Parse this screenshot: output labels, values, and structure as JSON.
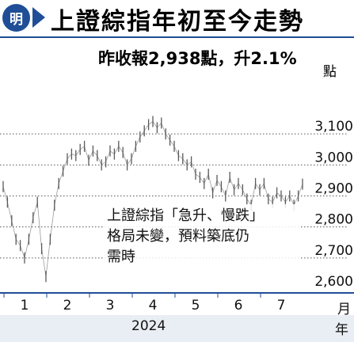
{
  "header": {
    "logo_text": "明",
    "title": "上證綜指年初至今走勢"
  },
  "chart_data": {
    "type": "line",
    "title": "上證綜指年初至今走勢",
    "annotation": "昨收報2,938點，升2.1%",
    "ylabel": "點",
    "xlabel": "月",
    "year_label": "2024",
    "year_unit": "年",
    "ylim": [
      2600,
      3200
    ],
    "yticks": [
      {
        "value": 3100,
        "label": "3,100"
      },
      {
        "value": 3000,
        "label": "3,000"
      },
      {
        "value": 2900,
        "label": "2,900"
      },
      {
        "value": 2800,
        "label": "2,800"
      },
      {
        "value": 2700,
        "label": "2,700"
      },
      {
        "value": 2600,
        "label": "2,600"
      }
    ],
    "xticks": [
      "1",
      "2",
      "3",
      "4",
      "5",
      "6",
      "7"
    ],
    "grid": true,
    "accent_color": "#1f4e97",
    "series_color": "#5a5a5a",
    "series": [
      {
        "x": [
          0.0,
          0.2,
          0.4,
          0.6,
          0.8,
          1.0,
          1.2,
          1.4,
          1.6,
          1.8,
          2.0,
          2.2,
          2.4,
          2.6,
          2.8,
          3.0,
          3.2,
          3.4,
          3.6,
          3.8,
          4.0,
          4.2,
          4.4,
          4.6,
          4.8,
          5.0,
          5.2,
          5.4,
          5.6,
          5.8,
          6.0,
          6.2,
          6.4,
          6.6,
          6.8,
          7.0,
          7.2,
          7.4,
          7.6,
          7.8,
          8.0,
          8.2,
          8.4,
          8.6,
          8.8,
          9.0,
          9.2,
          9.4,
          9.6,
          9.8,
          10.0,
          10.2,
          10.4,
          10.6,
          10.8,
          11.0,
          11.2,
          11.4,
          11.6,
          11.8,
          12.0,
          12.2,
          12.4,
          12.6,
          12.8,
          13.0,
          13.2,
          13.4,
          13.6,
          13.8,
          14.0
        ],
        "y": [
          2930,
          2880,
          2820,
          2760,
          2740,
          2700,
          2760,
          2830,
          2880,
          2730,
          2640,
          2760,
          2870,
          2940,
          2980,
          3020,
          3035,
          3030,
          3050,
          3060,
          3015,
          3045,
          3030,
          3000,
          3010,
          3045,
          3035,
          3060,
          3040,
          3000,
          3020,
          3060,
          3090,
          3110,
          3130,
          3140,
          3120,
          3135,
          3100,
          3080,
          3060,
          3030,
          3020,
          3000,
          3010,
          2970,
          2960,
          2940,
          2970,
          2910,
          2950,
          2930,
          2900,
          2960,
          2920,
          2940,
          2920,
          2890,
          2870,
          2940,
          2920,
          2940,
          2890,
          2880,
          2910,
          2900,
          2880,
          2900,
          2870,
          2900,
          2938
        ],
        "y_note": "approximate daily closes read from the chart; x measured in half-months from start of January"
      }
    ]
  },
  "note": {
    "line1": "上證綜指「急升、慢跌」",
    "line2": "格局未變，預料築底仍",
    "line3": "需時"
  }
}
